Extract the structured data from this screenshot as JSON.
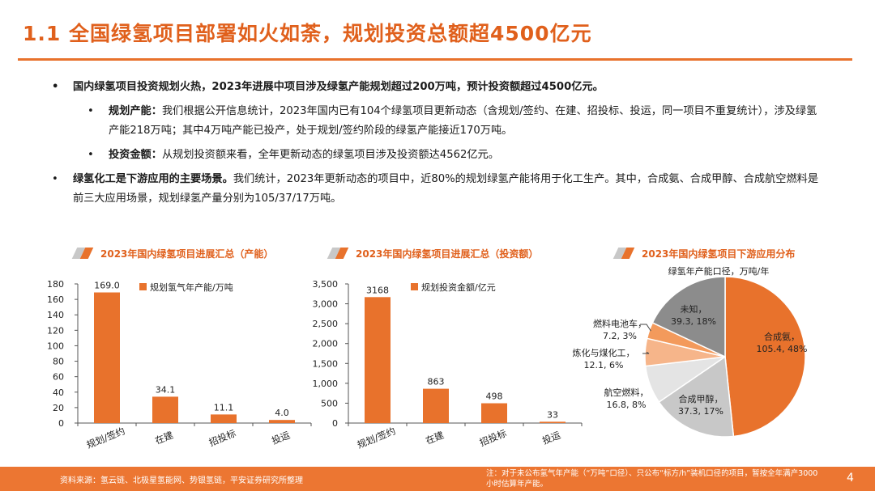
{
  "title": "1.1 全国绿氢项目部署如火如荼，规划投资总额超4500亿元",
  "bullets": {
    "b1": "国内绿氢项目投资规划火热，2023年进展中项目涉及绿氢产能规划超过200万吨，预计投资额超过4500亿元。",
    "b1_1_head": "规划产能：",
    "b1_1_text": "我们根据公开信息统计，2023年国内已有104个绿氢项目更新动态（含规划/签约、在建、招投标、投运，同一项目不重复统计），涉及绿氢产能218万吨；其中4万吨产能已投产，处于规划/签约阶段的绿氢产能接近170万吨。",
    "b1_2_head": "投资金额：",
    "b1_2_text": "从规划投资额来看，全年更新动态的绿氢项目涉及投资额达4562亿元。",
    "b2_head": "绿氢化工是下游应用的主要场景。",
    "b2_text": "我们统计，2023年更新动态的项目中，近80%的规划绿氢产能将用于化工生产。其中，合成氨、合成甲醇、合成航空燃料是前三大应用场景，规划绿氢产量分别为105/37/17万吨。"
  },
  "charts": {
    "c1_title": "2023年国内绿氢项目进展汇总（产能）",
    "c2_title": "2023年国内绿氢项目进展汇总（投资额）",
    "c3_title": "2023年国内绿氢项目下游应用分布",
    "c3_subtitle": "绿氢年产能口径，万吨/年"
  },
  "colors": {
    "accent": "#e8722c",
    "gray_dark": "#8c8c8c",
    "gray_light": "#c8c8c8"
  },
  "chart_data": [
    {
      "type": "bar",
      "title": "2023年国内绿氢项目进展汇总（产能）",
      "categories": [
        "规划/签约",
        "在建",
        "招投标",
        "投运"
      ],
      "series": [
        {
          "name": "规划氢气年产能/万吨",
          "values": [
            169.0,
            34.1,
            11.1,
            4.0
          ]
        }
      ],
      "value_labels": [
        "169.0",
        "34.1",
        "11.1",
        "4.0"
      ],
      "ylim": [
        0,
        180
      ],
      "yticks": [
        0,
        20,
        40,
        60,
        80,
        100,
        120,
        140,
        160,
        180
      ],
      "ytick_labels": [
        "0",
        "20",
        "40",
        "60",
        "80",
        "100",
        "120",
        "140",
        "160",
        "180"
      ]
    },
    {
      "type": "bar",
      "title": "2023年国内绿氢项目进展汇总（投资额）",
      "categories": [
        "规划/签约",
        "在建",
        "招投标",
        "投运"
      ],
      "series": [
        {
          "name": "规划投资金额/亿元",
          "values": [
            3168,
            863,
            498,
            33
          ]
        }
      ],
      "value_labels": [
        "3168",
        "863",
        "498",
        "33"
      ],
      "ylim": [
        0,
        3500
      ],
      "yticks": [
        0,
        500,
        1000,
        1500,
        2000,
        2500,
        3000,
        3500
      ],
      "ytick_labels": [
        "0",
        "500",
        "1,000",
        "1,500",
        "2,000",
        "2,500",
        "3,000",
        "3,500"
      ]
    },
    {
      "type": "pie",
      "title": "2023年国内绿氢项目下游应用分布",
      "subtitle": "绿氢年产能口径，万吨/年",
      "slices": [
        {
          "label": "合成氨",
          "value": 105.4,
          "percent": 48,
          "text": "105.4, 48%",
          "color": "#e8722c"
        },
        {
          "label": "合成甲醇",
          "value": 37.3,
          "percent": 17,
          "text": "37.3, 17%",
          "color": "#c8c8c8"
        },
        {
          "label": "航空燃料",
          "value": 16.8,
          "percent": 8,
          "text": "16.8, 8%",
          "color": "#e4e4e4"
        },
        {
          "label": "炼化与煤化工",
          "value": 12.1,
          "percent": 6,
          "text": "12.1, 6%",
          "color": "#f6b58a"
        },
        {
          "label": "燃料电池车",
          "value": 7.2,
          "percent": 3,
          "text": "7.2, 3%",
          "color": "#f39a5c"
        },
        {
          "label": "未知",
          "value": 39.3,
          "percent": 18,
          "text": "39.3, 18%",
          "color": "#8c8c8c"
        }
      ]
    }
  ],
  "footer": {
    "source": "资料来源：氢云链、北极星氢能网、势银氢链，平安证券研究所整理",
    "note": "注：对于未公布氢气年产能（“万吨”口径）、只公布“标方/h”装机口径的项目，暂按全年满产3000小时估算年产能。",
    "page": "4"
  }
}
